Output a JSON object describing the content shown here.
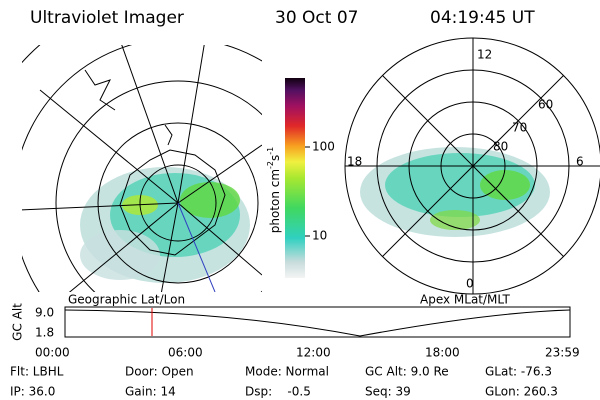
{
  "header": {
    "title": "Ultraviolet Imager",
    "date": "30 Oct 07",
    "time": "04:19:45 UT"
  },
  "colorbar": {
    "unit": "photon cm",
    "exp1": "-2",
    "unit2": "s",
    "exp2": "-1",
    "ticks": [
      "100",
      "10"
    ]
  },
  "left_panel": {
    "caption": "Geographic Lat/Lon"
  },
  "right_panel": {
    "caption": "Apex MLat/MLT",
    "mlt_labels": [
      "12",
      "18",
      "6",
      "0"
    ],
    "mlat_labels": [
      "80",
      "70",
      "60"
    ]
  },
  "timeline": {
    "ylabel": "GC Alt",
    "yticks": [
      "9.0",
      "1.8"
    ],
    "xticks": [
      "00:00",
      "06:00",
      "12:00",
      "18:00",
      "23:59"
    ]
  },
  "footer": {
    "rows": [
      [
        "Flt: LBHL",
        "Door: Open",
        "Mode: Normal",
        "GC Alt: 9.0 Re",
        "GLat: -76.3"
      ],
      [
        "IP: 36.0",
        "Gain: 14",
        "Dsp:    -0.5",
        "Seq: 39",
        "GLon: 260.3"
      ]
    ]
  }
}
